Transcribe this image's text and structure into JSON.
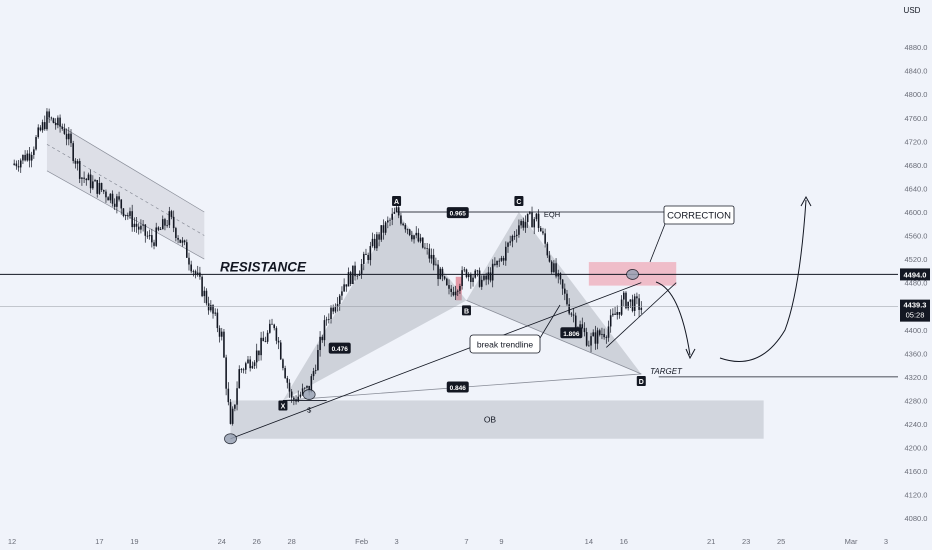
{
  "chart_data": {
    "type": "candlestick",
    "title": "",
    "currency": "USD",
    "x_start": "2025-01-12",
    "x_end": "2025-03-03",
    "ylim": [
      4060,
      4960
    ],
    "y_ticks": [
      "4880.0",
      "4840.0",
      "4800.0",
      "4760.0",
      "4720.0",
      "4680.0",
      "4640.0",
      "4600.0",
      "4560.0",
      "4520.0",
      "4480.0",
      "4440.0",
      "4400.0",
      "4360.0",
      "4320.0",
      "4280.0",
      "4240.0",
      "4200.0",
      "4160.0",
      "4120.0",
      "4080.0"
    ],
    "x_ticks": [
      {
        "label": "12",
        "date": "2025-01-12"
      },
      {
        "label": "17",
        "date": "2025-01-17"
      },
      {
        "label": "19",
        "date": "2025-01-19"
      },
      {
        "label": "24",
        "date": "2025-01-24"
      },
      {
        "label": "26",
        "date": "2025-01-26"
      },
      {
        "label": "28",
        "date": "2025-01-28"
      },
      {
        "label": "Feb",
        "date": "2025-02-01"
      },
      {
        "label": "3",
        "date": "2025-02-03"
      },
      {
        "label": "7",
        "date": "2025-02-07"
      },
      {
        "label": "9",
        "date": "2025-02-09"
      },
      {
        "label": "14",
        "date": "2025-02-14"
      },
      {
        "label": "16",
        "date": "2025-02-16"
      },
      {
        "label": "21",
        "date": "2025-02-21"
      },
      {
        "label": "23",
        "date": "2025-02-23"
      },
      {
        "label": "25",
        "date": "2025-02-25"
      },
      {
        "label": "Mar",
        "date": "2025-03-01"
      },
      {
        "label": "3",
        "date": "2025-03-03"
      }
    ],
    "price_path": [
      [
        "2025-01-12",
        4680
      ],
      [
        "2025-01-13",
        4700
      ],
      [
        "2025-01-14",
        4760
      ],
      [
        "2025-01-15",
        4740
      ],
      [
        "2025-01-16",
        4660
      ],
      [
        "2025-01-17",
        4640
      ],
      [
        "2025-01-18",
        4620
      ],
      [
        "2025-01-19",
        4580
      ],
      [
        "2025-01-20",
        4550
      ],
      [
        "2025-01-21",
        4590
      ],
      [
        "2025-01-22",
        4530
      ],
      [
        "2025-01-23",
        4460
      ],
      [
        "2025-01-24",
        4390
      ],
      [
        "2025-01-24T12",
        4230
      ],
      [
        "2025-01-25",
        4330
      ],
      [
        "2025-01-26",
        4360
      ],
      [
        "2025-01-27",
        4410
      ],
      [
        "2025-01-28",
        4280
      ],
      [
        "2025-01-29",
        4300
      ],
      [
        "2025-01-30",
        4420
      ],
      [
        "2025-01-31",
        4480
      ],
      [
        "2025-02-01",
        4510
      ],
      [
        "2025-02-02",
        4560
      ],
      [
        "2025-02-03",
        4600
      ],
      [
        "2025-02-04",
        4560
      ],
      [
        "2025-02-05",
        4520
      ],
      [
        "2025-02-06",
        4460
      ],
      [
        "2025-02-07",
        4500
      ],
      [
        "2025-02-08",
        4480
      ],
      [
        "2025-02-09",
        4520
      ],
      [
        "2025-02-10",
        4580
      ],
      [
        "2025-02-11",
        4590
      ],
      [
        "2025-02-12",
        4500
      ],
      [
        "2025-02-13",
        4430
      ],
      [
        "2025-02-14",
        4380
      ],
      [
        "2025-02-15",
        4400
      ],
      [
        "2025-02-16",
        4450
      ],
      [
        "2025-02-17",
        4439.3
      ]
    ],
    "levels": {
      "resistance": 4494.0,
      "last_price": 4439.3,
      "countdown": "05:28",
      "eqh": 4600,
      "target": 4320,
      "ob_top": 4280,
      "ob_bottom": 4215
    },
    "pattern_points": {
      "X": [
        "2025-01-27T12",
        4280
      ],
      "A": [
        "2025-02-03",
        4600
      ],
      "B": [
        "2025-02-07",
        4450
      ],
      "C": [
        "2025-02-10",
        4600
      ],
      "D": [
        "2025-02-17",
        4325
      ]
    },
    "ratios": [
      "0.965",
      "0.476",
      "1.806",
      "0.846"
    ],
    "annotations": {
      "resistance": "RESISTANCE",
      "eqh": "EQH",
      "correction": "CORRECTION",
      "break_trendline": "break trendline",
      "target": "TARGET",
      "ob": "OB",
      "s": "$"
    },
    "colors": {
      "background": "#f0f3fa",
      "candle": "#131722",
      "pattern_fill": "#9aa0ab",
      "zone": "#ef9aa8",
      "ob": "#cdd0d8",
      "label_bg": "#131722"
    }
  }
}
